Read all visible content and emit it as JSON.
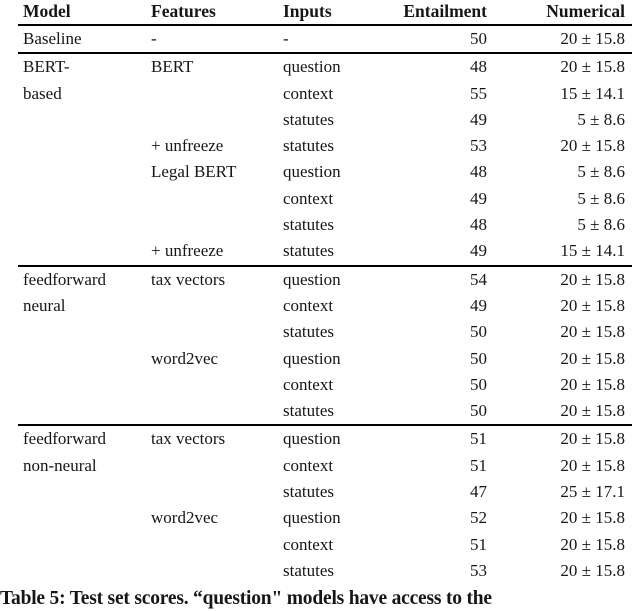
{
  "table": {
    "columns": [
      {
        "label": "Model",
        "align": "left"
      },
      {
        "label": "Features",
        "align": "left"
      },
      {
        "label": "Inputs",
        "align": "left"
      },
      {
        "label": "Entailment",
        "align": "right"
      },
      {
        "label": "Numerical",
        "align": "right"
      }
    ],
    "sections": [
      {
        "model_lines": [
          "Baseline"
        ],
        "rows": [
          {
            "features": "-",
            "inputs": "-",
            "entailment": "50",
            "numerical": "20 ± 15.8"
          }
        ]
      },
      {
        "model_lines": [
          "BERT-",
          "based"
        ],
        "rows": [
          {
            "features": "BERT",
            "inputs": "question",
            "entailment": "48",
            "numerical": "20 ± 15.8"
          },
          {
            "features": "",
            "inputs": "context",
            "entailment": "55",
            "numerical": "15 ± 14.1"
          },
          {
            "features": "",
            "inputs": "statutes",
            "entailment": "49",
            "numerical": "5 ± 8.6"
          },
          {
            "features": "+ unfreeze",
            "inputs": "statutes",
            "entailment": "53",
            "numerical": "20 ± 15.8"
          },
          {
            "features": "Legal BERT",
            "inputs": "question",
            "entailment": "48",
            "numerical": "5 ± 8.6"
          },
          {
            "features": "",
            "inputs": "context",
            "entailment": "49",
            "numerical": "5 ± 8.6"
          },
          {
            "features": "",
            "inputs": "statutes",
            "entailment": "48",
            "numerical": "5 ± 8.6"
          },
          {
            "features": "+ unfreeze",
            "inputs": "statutes",
            "entailment": "49",
            "numerical": "15 ± 14.1"
          }
        ]
      },
      {
        "model_lines": [
          "feedforward",
          "neural"
        ],
        "rows": [
          {
            "features": "tax vectors",
            "inputs": "question",
            "entailment": "54",
            "numerical": "20 ± 15.8"
          },
          {
            "features": "",
            "inputs": "context",
            "entailment": "49",
            "numerical": "20 ± 15.8"
          },
          {
            "features": "",
            "inputs": "statutes",
            "entailment": "50",
            "numerical": "20 ± 15.8"
          },
          {
            "features": "word2vec",
            "inputs": "question",
            "entailment": "50",
            "numerical": "20 ± 15.8"
          },
          {
            "features": "",
            "inputs": "context",
            "entailment": "50",
            "numerical": "20 ± 15.8"
          },
          {
            "features": "",
            "inputs": "statutes",
            "entailment": "50",
            "numerical": "20 ± 15.8"
          }
        ]
      },
      {
        "model_lines": [
          "feedforward",
          "non-neural"
        ],
        "rows": [
          {
            "features": "tax vectors",
            "inputs": "question",
            "entailment": "51",
            "numerical": "20 ± 15.8"
          },
          {
            "features": "",
            "inputs": "context",
            "entailment": "51",
            "numerical": "20 ± 15.8"
          },
          {
            "features": "",
            "inputs": "statutes",
            "entailment": "47",
            "numerical": "25 ± 17.1"
          },
          {
            "features": "word2vec",
            "inputs": "question",
            "entailment": "52",
            "numerical": "20 ± 15.8"
          },
          {
            "features": "",
            "inputs": "context",
            "entailment": "51",
            "numerical": "20 ± 15.8"
          },
          {
            "features": "",
            "inputs": "statutes",
            "entailment": "53",
            "numerical": "20 ± 15.8"
          }
        ]
      }
    ]
  },
  "caption": "Table 5: Test set scores. “question\" models have access to the",
  "colors": {
    "text": "#161616",
    "rule": "#000000",
    "background": "#ffffff"
  }
}
